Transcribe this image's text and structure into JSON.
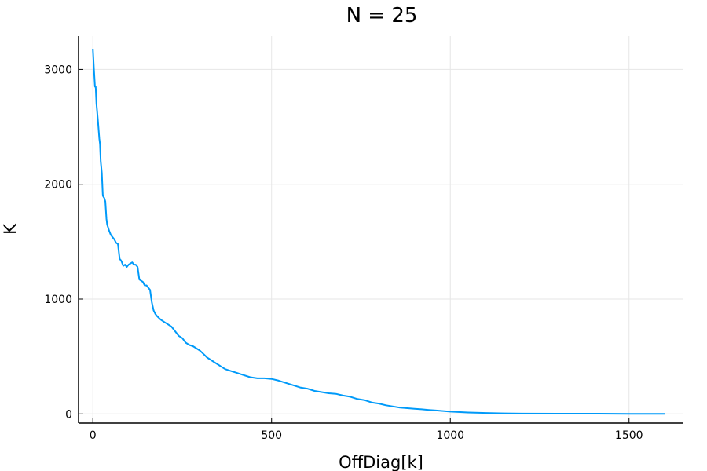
{
  "chart_data": {
    "type": "line",
    "title": "N = 25",
    "xlabel": "OffDiag[k]",
    "ylabel": "K",
    "xlim": [
      -40,
      1650
    ],
    "ylim": [
      -80,
      3290
    ],
    "xticks": [
      0,
      500,
      1000,
      1500
    ],
    "yticks": [
      0,
      1000,
      2000,
      3000
    ],
    "grid": true,
    "legend": "none",
    "series": [
      {
        "color": "#009af9",
        "x": [
          0,
          3,
          6,
          8,
          10,
          14,
          18,
          20,
          22,
          25,
          28,
          32,
          35,
          38,
          40,
          45,
          50,
          55,
          60,
          65,
          70,
          75,
          78,
          80,
          85,
          90,
          95,
          100,
          105,
          110,
          115,
          120,
          125,
          130,
          135,
          140,
          145,
          150,
          155,
          160,
          165,
          170,
          175,
          180,
          190,
          200,
          210,
          220,
          230,
          240,
          250,
          260,
          270,
          280,
          290,
          300,
          310,
          320,
          330,
          340,
          350,
          360,
          370,
          380,
          390,
          400,
          420,
          440,
          460,
          480,
          500,
          520,
          540,
          560,
          580,
          600,
          620,
          640,
          660,
          680,
          700,
          720,
          740,
          760,
          780,
          800,
          820,
          840,
          860,
          880,
          900,
          920,
          940,
          960,
          980,
          1000,
          1050,
          1100,
          1150,
          1200,
          1300,
          1400,
          1500,
          1600
        ],
        "y": [
          3180,
          3000,
          2850,
          2850,
          2700,
          2560,
          2400,
          2350,
          2200,
          2100,
          1900,
          1880,
          1850,
          1700,
          1650,
          1600,
          1560,
          1540,
          1520,
          1490,
          1480,
          1350,
          1340,
          1330,
          1290,
          1300,
          1280,
          1300,
          1310,
          1320,
          1300,
          1300,
          1280,
          1170,
          1160,
          1150,
          1120,
          1120,
          1100,
          1080,
          970,
          900,
          870,
          850,
          820,
          800,
          780,
          760,
          720,
          680,
          660,
          620,
          600,
          590,
          570,
          550,
          520,
          490,
          470,
          450,
          430,
          410,
          390,
          380,
          370,
          360,
          340,
          320,
          310,
          310,
          305,
          290,
          270,
          250,
          230,
          220,
          200,
          190,
          180,
          175,
          160,
          150,
          130,
          120,
          100,
          90,
          75,
          65,
          55,
          50,
          45,
          40,
          35,
          30,
          25,
          20,
          12,
          8,
          5,
          3,
          2,
          2,
          1,
          1
        ]
      }
    ]
  }
}
